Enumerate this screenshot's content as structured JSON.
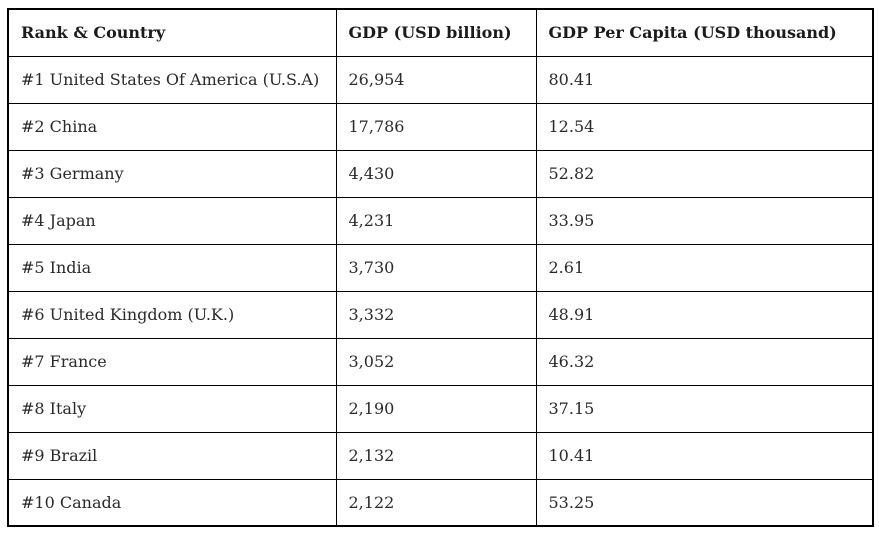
{
  "table": {
    "headers": [
      "Rank & Country",
      "GDP (USD billion)",
      "GDP Per Capita (USD thousand)"
    ],
    "rows": [
      {
        "country": "#1 United States Of America (U.S.A)",
        "gdp": "26,954",
        "per_capita": "80.41"
      },
      {
        "country": "#2 China",
        "gdp": "17,786",
        "per_capita": "12.54"
      },
      {
        "country": "#3 Germany",
        "gdp": "4,430",
        "per_capita": "52.82"
      },
      {
        "country": "#4 Japan",
        "gdp": "4,231",
        "per_capita": "33.95"
      },
      {
        "country": "#5 India",
        "gdp": "3,730",
        "per_capita": "2.61"
      },
      {
        "country": "#6 United Kingdom (U.K.)",
        "gdp": "3,332",
        "per_capita": "48.91"
      },
      {
        "country": "#7 France",
        "gdp": "3,052",
        "per_capita": "46.32"
      },
      {
        "country": "#8 Italy",
        "gdp": "2,190",
        "per_capita": "37.15"
      },
      {
        "country": "#9 Brazil",
        "gdp": "2,132",
        "per_capita": "10.41"
      },
      {
        "country": "#10 Canada",
        "gdp": "2,122",
        "per_capita": "53.25"
      }
    ]
  },
  "chart_data": {
    "type": "table",
    "title": "",
    "columns": [
      "Rank & Country",
      "GDP (USD billion)",
      "GDP Per Capita (USD thousand)"
    ],
    "rows": [
      {
        "rank": 1,
        "country": "United States Of America (U.S.A)",
        "gdp_usd_billion": 26954,
        "gdp_per_capita_usd_thousand": 80.41
      },
      {
        "rank": 2,
        "country": "China",
        "gdp_usd_billion": 17786,
        "gdp_per_capita_usd_thousand": 12.54
      },
      {
        "rank": 3,
        "country": "Germany",
        "gdp_usd_billion": 4430,
        "gdp_per_capita_usd_thousand": 52.82
      },
      {
        "rank": 4,
        "country": "Japan",
        "gdp_usd_billion": 4231,
        "gdp_per_capita_usd_thousand": 33.95
      },
      {
        "rank": 5,
        "country": "India",
        "gdp_usd_billion": 3730,
        "gdp_per_capita_usd_thousand": 2.61
      },
      {
        "rank": 6,
        "country": "United Kingdom (U.K.)",
        "gdp_usd_billion": 3332,
        "gdp_per_capita_usd_thousand": 48.91
      },
      {
        "rank": 7,
        "country": "France",
        "gdp_usd_billion": 3052,
        "gdp_per_capita_usd_thousand": 46.32
      },
      {
        "rank": 8,
        "country": "Italy",
        "gdp_usd_billion": 2190,
        "gdp_per_capita_usd_thousand": 37.15
      },
      {
        "rank": 9,
        "country": "Brazil",
        "gdp_usd_billion": 2132,
        "gdp_per_capita_usd_thousand": 10.41
      },
      {
        "rank": 10,
        "country": "Canada",
        "gdp_usd_billion": 2122,
        "gdp_per_capita_usd_thousand": 53.25
      }
    ]
  }
}
